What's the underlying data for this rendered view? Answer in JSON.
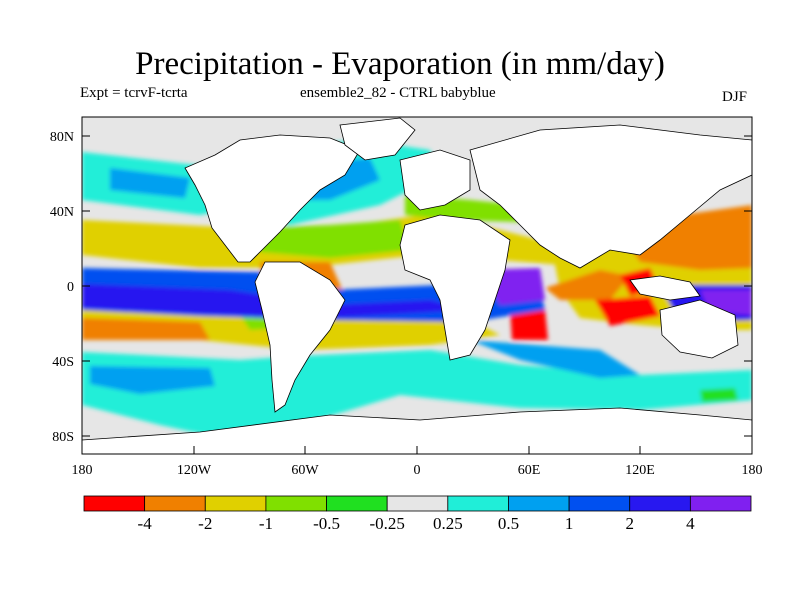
{
  "title": "Precipitation - Evaporation (in mm/day)",
  "subtitle_left": "Expt = tcrvF-tcrta",
  "subtitle_center": "ensemble2_82 - CTRL babyblue",
  "subtitle_right": "DJF",
  "y_ticks": [
    "80N",
    "40N",
    "0",
    "40S",
    "80S"
  ],
  "x_ticks": [
    "180",
    "120W",
    "60W",
    "0",
    "60E",
    "120E",
    "180"
  ],
  "colorbar": {
    "labels": [
      "-4",
      "-2",
      "-1",
      "-0.5",
      "-0.25",
      "0.25",
      "0.5",
      "1",
      "2",
      "4"
    ],
    "colors": [
      "#ff0000",
      "#f08000",
      "#e0d000",
      "#80e000",
      "#20e020",
      "#e6e6e6",
      "#20eed8",
      "#00a0f0",
      "#0050f0",
      "#2818f0",
      "#8020f0"
    ]
  },
  "colors": {
    "land": "#ffffff",
    "ocean_neutral": "#e6e6e6",
    "coast": "#000000"
  }
}
